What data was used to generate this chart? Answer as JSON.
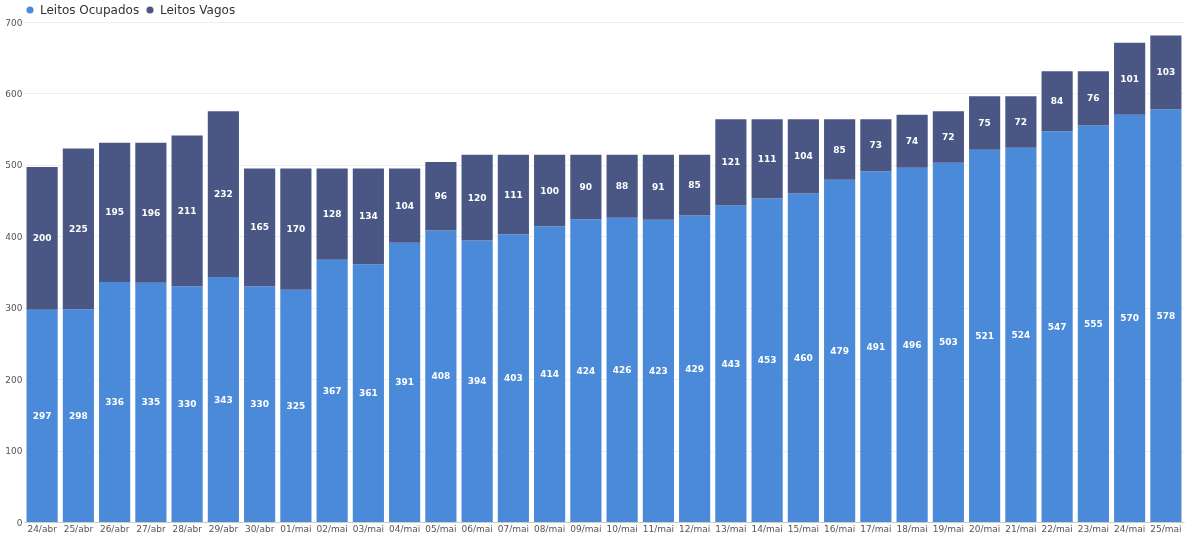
{
  "chart_data": {
    "type": "bar",
    "stacked": true,
    "legend": "top",
    "grid": "y",
    "data_labels": true,
    "categories": [
      "24/abr",
      "25/abr",
      "26/abr",
      "27/abr",
      "28/abr",
      "29/abr",
      "30/abr",
      "01/mai",
      "02/mai",
      "03/mai",
      "04/mai",
      "05/mai",
      "06/mai",
      "07/mai",
      "08/mai",
      "09/mai",
      "10/mai",
      "11/mai",
      "12/mai",
      "13/mai",
      "14/mai",
      "15/mai",
      "16/mai",
      "17/mai",
      "18/mai",
      "19/mai",
      "20/mai",
      "21/mai",
      "22/mai",
      "23/mai",
      "24/mai",
      "25/mai"
    ],
    "ylim": [
      0,
      700
    ],
    "yticks": [
      0,
      100,
      200,
      300,
      400,
      500,
      600,
      700
    ],
    "series": [
      {
        "name": "Leitos Ocupados",
        "color": "#4a8ad8",
        "values": [
          297,
          298,
          336,
          335,
          330,
          343,
          330,
          325,
          367,
          361,
          391,
          408,
          394,
          403,
          414,
          424,
          426,
          423,
          429,
          443,
          453,
          460,
          479,
          491,
          496,
          503,
          521,
          524,
          547,
          555,
          570,
          578
        ]
      },
      {
        "name": "Leitos Vagos",
        "color": "#4a5785",
        "values": [
          200,
          225,
          195,
          196,
          211,
          232,
          165,
          170,
          128,
          134,
          104,
          96,
          120,
          111,
          100,
          90,
          88,
          91,
          85,
          121,
          111,
          104,
          85,
          73,
          74,
          72,
          75,
          72,
          84,
          76,
          101,
          103
        ]
      }
    ]
  }
}
